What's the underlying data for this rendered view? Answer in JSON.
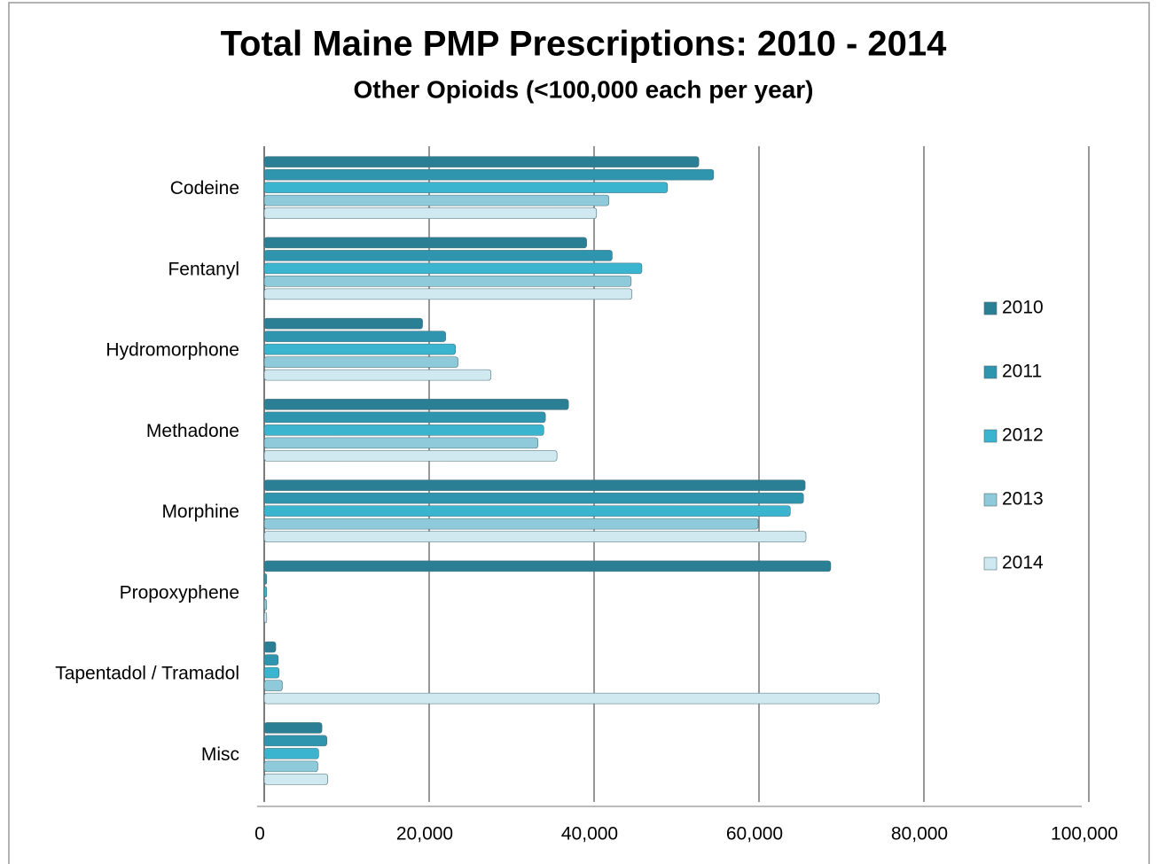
{
  "chart_data": {
    "type": "bar",
    "orientation": "horizontal",
    "title": "Total Maine PMP Prescriptions: 2010 - 2014",
    "subtitle": "Other Opioids (<100,000 each per year)",
    "categories": [
      "Codeine",
      "Fentanyl",
      "Hydromorphone",
      "Methadone",
      "Morphine",
      "Propoxyphene",
      "Tapentadol / Tramadol",
      "Misc"
    ],
    "series": [
      {
        "name": "2010",
        "color": "#2a7f94",
        "values": [
          52700,
          39100,
          19200,
          36900,
          65600,
          68700,
          1400,
          7000
        ]
      },
      {
        "name": "2011",
        "color": "#2f95ae",
        "values": [
          54500,
          42200,
          22000,
          34100,
          65400,
          300,
          1700,
          7600
        ]
      },
      {
        "name": "2012",
        "color": "#3bb4cf",
        "values": [
          48900,
          45800,
          23200,
          33900,
          63800,
          300,
          1800,
          6600
        ]
      },
      {
        "name": "2013",
        "color": "#8ecada",
        "values": [
          41800,
          44500,
          23500,
          33200,
          59900,
          300,
          2200,
          6500
        ]
      },
      {
        "name": "2014",
        "color": "#d0e8ef",
        "values": [
          40300,
          44600,
          27500,
          35500,
          65700,
          300,
          74600,
          7700
        ]
      }
    ],
    "xlim": [
      0,
      100000
    ],
    "xticks": [
      0,
      {
        "value": 20000,
        "label": "20,000"
      },
      {
        "value": 40000,
        "label": "40,000"
      },
      {
        "value": 60000,
        "label": "60,000"
      },
      {
        "value": 80000,
        "label": "80,000"
      },
      {
        "value": 100000,
        "label": "100,000"
      }
    ],
    "grid": true,
    "legend": "right"
  }
}
